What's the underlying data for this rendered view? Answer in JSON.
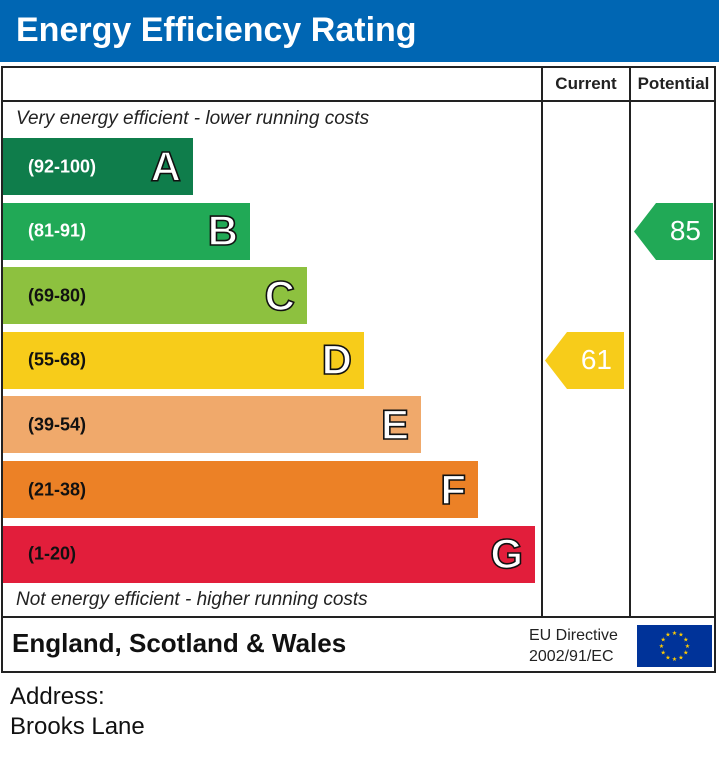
{
  "header": {
    "title": "Energy Efficiency Rating"
  },
  "columns": {
    "current": "Current",
    "potential": "Potential"
  },
  "captions": {
    "top": "Very energy efficient - lower running costs",
    "bottom": "Not energy efficient - higher running costs"
  },
  "chart_data": {
    "type": "bar",
    "title": "Energy Efficiency Rating",
    "bands": [
      {
        "letter": "A",
        "range": "(92-100)",
        "color": "#0f7d4b",
        "text_color": "#ffffff"
      },
      {
        "letter": "B",
        "range": "(81-91)",
        "color": "#21a956",
        "text_color": "#ffffff"
      },
      {
        "letter": "C",
        "range": "(69-80)",
        "color": "#8dc13f",
        "text_color": "#111111"
      },
      {
        "letter": "D",
        "range": "(55-68)",
        "color": "#f7cc1a",
        "text_color": "#111111"
      },
      {
        "letter": "E",
        "range": "(39-54)",
        "color": "#f0a96b",
        "text_color": "#111111"
      },
      {
        "letter": "F",
        "range": "(21-38)",
        "color": "#ec8126",
        "text_color": "#111111"
      },
      {
        "letter": "G",
        "range": "(1-20)",
        "color": "#e21e3b",
        "text_color": "#111111"
      }
    ],
    "current": {
      "value": "61",
      "band": "D",
      "color": "#f7cc1a"
    },
    "potential": {
      "value": "85",
      "band": "B",
      "color": "#21a956"
    }
  },
  "footer": {
    "region": "England, Scotland & Wales",
    "directive_line1": "EU Directive",
    "directive_line2": "2002/91/EC",
    "flag_icon": "eu-flag-icon"
  },
  "address": {
    "label": "Address:",
    "value": "Brooks Lane"
  }
}
